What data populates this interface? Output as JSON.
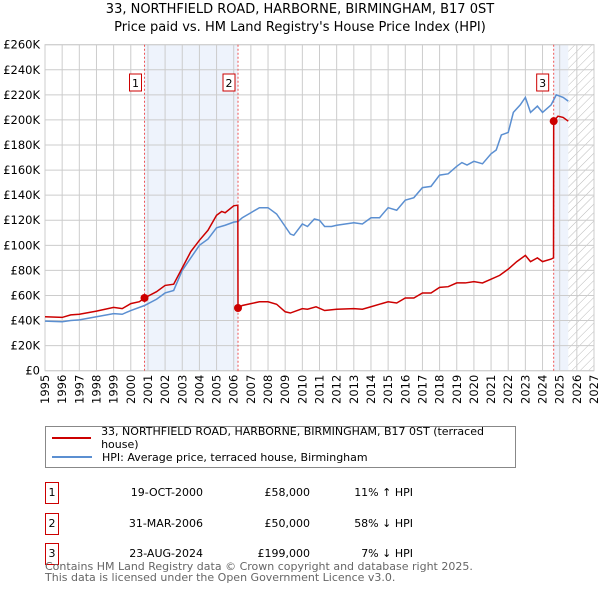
{
  "title": "33, NORTHFIELD ROAD, HARBORNE, BIRMINGHAM, B17 0ST",
  "subtitle": "Price paid vs. HM Land Registry's House Price Index (HPI)",
  "colors": {
    "property": "#cc0000",
    "hpi": "#5b8fd1",
    "shade": "#eef3fc"
  },
  "chart_data": {
    "type": "line",
    "xlim": [
      1995,
      2027
    ],
    "ylim": [
      0,
      260000
    ],
    "x_ticks": [
      "1995",
      "1996",
      "1997",
      "1998",
      "1999",
      "2000",
      "2001",
      "2002",
      "2003",
      "2004",
      "2005",
      "2006",
      "2007",
      "2008",
      "2009",
      "2010",
      "2011",
      "2012",
      "2013",
      "2014",
      "2015",
      "2016",
      "2017",
      "2018",
      "2019",
      "2020",
      "2021",
      "2022",
      "2023",
      "2024",
      "2025",
      "2026",
      "2027"
    ],
    "y_ticks": [
      "£0",
      "£20K",
      "£40K",
      "£60K",
      "£80K",
      "£100K",
      "£120K",
      "£140K",
      "£160K",
      "£180K",
      "£200K",
      "£220K",
      "£240K",
      "£260K"
    ],
    "grid": true,
    "shaded_ranges": [
      [
        2000.8,
        2006.25
      ],
      [
        2024.65,
        2025.5
      ]
    ],
    "forecast_hatch_from": 2025.5,
    "series": [
      {
        "name": "33, NORTHFIELD ROAD, HARBORNE, BIRMINGHAM, B17 0ST (terraced house)",
        "color": "#cc0000",
        "x": [
          1995,
          1996,
          1996.5,
          1997,
          1998,
          1999,
          1999.5,
          2000,
          2000.5,
          2000.8,
          2001.5,
          2002,
          2002.5,
          2003,
          2003.5,
          2004,
          2004.5,
          2005,
          2005.3,
          2005.5,
          2006,
          2006.24,
          2006.25,
          2006.5,
          2007,
          2007.5,
          2008,
          2008.5,
          2009,
          2009.3,
          2010,
          2010.3,
          2010.8,
          2011.3,
          2012,
          2013,
          2013.5,
          2014,
          2015,
          2015.5,
          2016,
          2016.5,
          2017,
          2017.5,
          2018,
          2018.5,
          2019,
          2019.5,
          2020,
          2020.5,
          2021,
          2021.5,
          2022,
          2022.5,
          2023,
          2023.3,
          2023.7,
          2024,
          2024.5,
          2024.64,
          2024.65,
          2024.9,
          2025.2,
          2025.5
        ],
        "y": [
          43000,
          42500,
          44500,
          45000,
          47500,
          50500,
          49500,
          53500,
          55000,
          58000,
          63000,
          68000,
          69000,
          82000,
          95000,
          104000,
          112000,
          124000,
          127000,
          126000,
          131500,
          132000,
          50000,
          52000,
          53500,
          55000,
          55000,
          53000,
          47000,
          46000,
          49500,
          49000,
          51000,
          48000,
          49000,
          49500,
          49000,
          51000,
          55000,
          54000,
          58000,
          58000,
          62000,
          62000,
          66500,
          67000,
          70000,
          70000,
          71000,
          70000,
          73000,
          76000,
          81000,
          87000,
          92000,
          87000,
          90000,
          87000,
          89000,
          90000,
          199000,
          203000,
          202000,
          199000
        ]
      },
      {
        "name": "HPI: Average price, terraced house, Birmingham",
        "color": "#5b8fd1",
        "x": [
          1995,
          1996,
          1996.5,
          1997,
          1998,
          1999,
          1999.5,
          2000,
          2000.8,
          2001.5,
          2002,
          2002.5,
          2003,
          2003.5,
          2004,
          2004.5,
          2005,
          2005.5,
          2006,
          2006.25,
          2006.5,
          2007,
          2007.5,
          2008,
          2008.5,
          2009,
          2009.3,
          2009.5,
          2010,
          2010.3,
          2010.7,
          2011,
          2011.3,
          2011.7,
          2012,
          2012.5,
          2013,
          2013.5,
          2014,
          2014.5,
          2015,
          2015.5,
          2016,
          2016.5,
          2017,
          2017.5,
          2018,
          2018.5,
          2019,
          2019.3,
          2019.6,
          2020,
          2020.5,
          2021,
          2021.3,
          2021.6,
          2022,
          2022.3,
          2022.7,
          2023,
          2023.3,
          2023.7,
          2024,
          2024.5,
          2024.8,
          2025.2,
          2025.5
        ],
        "y": [
          39500,
          39000,
          40000,
          40500,
          43000,
          45500,
          45000,
          48000,
          52000,
          57000,
          62000,
          64000,
          80000,
          90000,
          100000,
          105000,
          114000,
          116000,
          118500,
          119000,
          122000,
          126000,
          130000,
          130000,
          125000,
          115000,
          109000,
          108000,
          117000,
          115000,
          121000,
          120000,
          115000,
          115000,
          116000,
          117000,
          118000,
          117000,
          122000,
          122000,
          130000,
          128000,
          136000,
          138000,
          146000,
          147000,
          156000,
          157000,
          163000,
          166000,
          164000,
          167000,
          165000,
          173000,
          176000,
          188000,
          190000,
          206000,
          212000,
          218000,
          206000,
          211000,
          206000,
          212000,
          220000,
          218000,
          215000
        ]
      }
    ],
    "sales": [
      {
        "label": "1",
        "x": 2000.8,
        "y": 58000
      },
      {
        "label": "2",
        "x": 2006.25,
        "y": 50000
      },
      {
        "label": "3",
        "x": 2024.65,
        "y": 199000
      }
    ]
  },
  "legend": {
    "property": "33, NORTHFIELD ROAD, HARBORNE, BIRMINGHAM, B17 0ST (terraced house)",
    "hpi": "HPI: Average price, terraced house, Birmingham"
  },
  "transactions": [
    {
      "num": "1",
      "date": "19-OCT-2000",
      "price": "£58,000",
      "delta": "11% ↑ HPI"
    },
    {
      "num": "2",
      "date": "31-MAR-2006",
      "price": "£50,000",
      "delta": "58% ↓ HPI"
    },
    {
      "num": "3",
      "date": "23-AUG-2024",
      "price": "£199,000",
      "delta": "7% ↓ HPI"
    }
  ],
  "footer": {
    "line1": "Contains HM Land Registry data © Crown copyright and database right 2025.",
    "line2": "This data is licensed under the Open Government Licence v3.0."
  }
}
